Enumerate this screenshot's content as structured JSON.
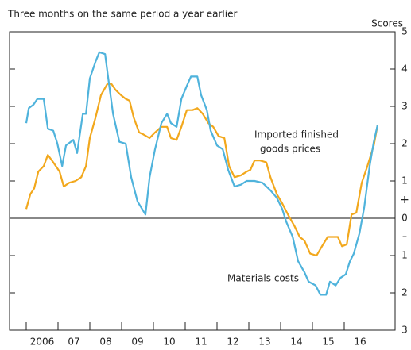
{
  "chart_data": {
    "type": "line",
    "title": "Three months on the same period a year earlier",
    "y_axis_label": "Scores",
    "y_sign_labels": [
      "+",
      "–"
    ],
    "annotations": [
      "Imported finished",
      "goods prices",
      "Materials costs"
    ],
    "xlim": [
      2005.475,
      2017.6
    ],
    "xticks": [
      {
        "value": 2006,
        "label": "2006"
      },
      {
        "value": 2007,
        "label": "07"
      },
      {
        "value": 2008,
        "label": "08"
      },
      {
        "value": 2009,
        "label": "09"
      },
      2010,
      2011,
      2012,
      2013,
      2014,
      2015,
      2016
    ],
    "ylim": [
      -3,
      5
    ],
    "yticks": [
      5,
      4,
      3,
      2,
      1,
      0,
      {
        "value": -1,
        "label": "1"
      },
      {
        "value": -2,
        "label": "2"
      },
      {
        "value": -3,
        "label": "3"
      }
    ],
    "zero_line": true,
    "series": [
      {
        "color": "#f2a81d",
        "x": [
          2006.0,
          2006.13,
          2006.25,
          2006.38,
          2006.55,
          2006.68,
          2006.85,
          2007.05,
          2007.18,
          2007.35,
          2007.55,
          2007.73,
          2007.88,
          2008.0,
          2008.18,
          2008.35,
          2008.55,
          2008.68,
          2008.8,
          2008.98,
          2009.13,
          2009.25,
          2009.38,
          2009.55,
          2009.68,
          2009.88,
          2010.05,
          2010.25,
          2010.43,
          2010.55,
          2010.73,
          2010.88,
          2011.05,
          2011.23,
          2011.38,
          2011.55,
          2011.73,
          2011.88,
          2012.05,
          2012.23,
          2012.38,
          2012.55,
          2012.75,
          2012.93,
          2013.05,
          2013.18,
          2013.35,
          2013.55,
          2013.68,
          2013.88,
          2014.05,
          2014.23,
          2014.43,
          2014.6,
          2014.75,
          2014.93,
          2015.13,
          2015.3,
          2015.48,
          2015.63,
          2015.8,
          2015.93,
          2016.08,
          2016.23,
          2016.38,
          2016.55,
          2016.73,
          2016.93,
          2017.05
        ],
        "values": [
          0.25,
          0.65,
          0.8,
          1.25,
          1.4,
          1.7,
          1.5,
          1.25,
          0.85,
          0.95,
          1.0,
          1.1,
          1.4,
          2.15,
          2.7,
          3.3,
          3.6,
          3.6,
          3.45,
          3.3,
          3.2,
          3.15,
          2.7,
          2.3,
          2.25,
          2.15,
          2.3,
          2.45,
          2.45,
          2.15,
          2.1,
          2.45,
          2.9,
          2.9,
          2.95,
          2.8,
          2.55,
          2.45,
          2.2,
          2.15,
          1.4,
          1.1,
          1.15,
          1.25,
          1.3,
          1.55,
          1.55,
          1.5,
          1.1,
          0.65,
          0.4,
          0.1,
          -0.2,
          -0.5,
          -0.6,
          -0.95,
          -1.0,
          -0.75,
          -0.5,
          -0.5,
          -0.5,
          -0.75,
          -0.7,
          0.1,
          0.15,
          0.95,
          1.4,
          1.95,
          2.5
        ]
      },
      {
        "color": "#4fb3dc",
        "x": [
          2006.0,
          2006.08,
          2006.23,
          2006.35,
          2006.55,
          2006.68,
          2006.85,
          2006.98,
          2007.13,
          2007.25,
          2007.48,
          2007.6,
          2007.78,
          2007.88,
          2008.0,
          2008.18,
          2008.3,
          2008.48,
          2008.58,
          2008.73,
          2008.93,
          2009.13,
          2009.3,
          2009.5,
          2009.75,
          2009.88,
          2010.05,
          2010.25,
          2010.43,
          2010.55,
          2010.73,
          2010.88,
          2011.05,
          2011.18,
          2011.38,
          2011.5,
          2011.68,
          2011.8,
          2012.0,
          2012.18,
          2012.35,
          2012.55,
          2012.75,
          2012.93,
          2013.18,
          2013.43,
          2013.68,
          2013.88,
          2014.05,
          2014.18,
          2014.38,
          2014.55,
          2014.75,
          2014.88,
          2015.1,
          2015.25,
          2015.43,
          2015.55,
          2015.73,
          2015.88,
          2016.05,
          2016.18,
          2016.3,
          2016.48,
          2016.63,
          2016.8,
          2016.93,
          2017.05
        ],
        "values": [
          2.55,
          2.95,
          3.05,
          3.2,
          3.2,
          2.4,
          2.35,
          2.0,
          1.4,
          1.95,
          2.1,
          1.75,
          2.8,
          2.8,
          3.75,
          4.2,
          4.45,
          4.4,
          3.75,
          2.8,
          2.05,
          2.0,
          1.1,
          0.45,
          0.1,
          1.1,
          1.85,
          2.55,
          2.8,
          2.55,
          2.45,
          3.2,
          3.55,
          3.8,
          3.8,
          3.3,
          2.9,
          2.35,
          1.95,
          1.85,
          1.3,
          0.85,
          0.9,
          1.0,
          1.0,
          0.95,
          0.75,
          0.55,
          0.25,
          -0.1,
          -0.5,
          -1.15,
          -1.45,
          -1.7,
          -1.8,
          -2.05,
          -2.05,
          -1.7,
          -1.8,
          -1.6,
          -1.5,
          -1.15,
          -0.95,
          -0.4,
          0.3,
          1.4,
          2.05,
          2.5
        ]
      }
    ]
  }
}
